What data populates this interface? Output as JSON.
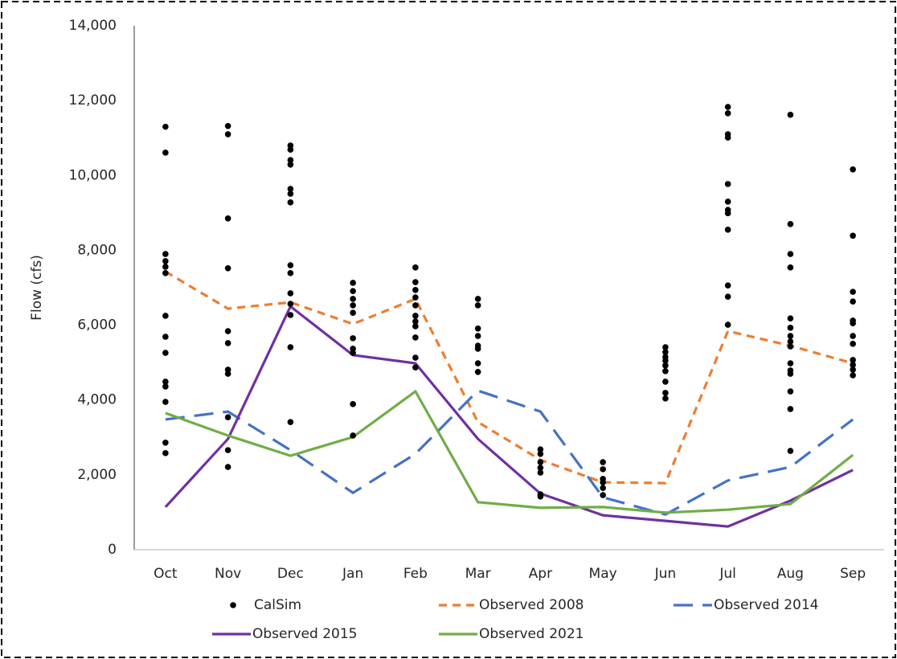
{
  "chart_data": {
    "type": "scatter-line",
    "y_label": "Flow (cfs)",
    "categories": [
      "Oct",
      "Nov",
      "Dec",
      "Jan",
      "Feb",
      "Mar",
      "Apr",
      "May",
      "Jun",
      "Jul",
      "Aug",
      "Sep"
    ],
    "ylim": [
      0,
      14000
    ],
    "yticks": [
      0,
      {
        "value": 2000,
        "label": "2,000"
      },
      {
        "value": 4000,
        "label": "4,000"
      },
      {
        "value": 6000,
        "label": "6,000"
      },
      {
        "value": 8000,
        "label": "8,000"
      },
      {
        "value": 10000,
        "label": "10,000"
      },
      {
        "value": 12000,
        "label": "12,000"
      },
      {
        "value": 14000,
        "label": "14,000"
      }
    ],
    "grid": false,
    "series": [
      {
        "name": "CalSim",
        "type": "scatter",
        "color": "#000000",
        "values": [
          [
            11300,
            10610,
            7900,
            7710,
            7560,
            7390,
            6250,
            5690,
            5260,
            4490,
            4360,
            3950,
            2860,
            2580
          ],
          [
            11320,
            11100,
            8850,
            7520,
            5840,
            5520,
            4810,
            4700,
            3540,
            2660,
            2210
          ],
          [
            10800,
            10690,
            10410,
            10290,
            9640,
            9510,
            9280,
            7600,
            7390,
            6850,
            6570,
            6270,
            5410,
            3410
          ],
          [
            7130,
            6910,
            6700,
            6530,
            6330,
            5650,
            5370,
            5260,
            3890,
            3050
          ],
          [
            7540,
            7150,
            6940,
            6740,
            6530,
            6250,
            6100,
            5970,
            5670,
            5130,
            4870
          ],
          [
            6700,
            6530,
            5910,
            5710,
            5450,
            5370,
            4980,
            4750
          ],
          [
            2680,
            2560,
            2340,
            2190,
            2060,
            1480,
            1420
          ],
          [
            2340,
            2150,
            1890,
            1800,
            1650,
            1460
          ],
          [
            5410,
            5280,
            5150,
            5050,
            4920,
            4770,
            4490,
            4190,
            4040
          ],
          [
            11830,
            11660,
            11100,
            11010,
            9770,
            9300,
            9080,
            8990,
            8550,
            7060,
            6760,
            6010
          ],
          [
            11620,
            8700,
            7900,
            7540,
            6180,
            5930,
            5710,
            5560,
            5430,
            4980,
            4790,
            4700,
            4230,
            3760,
            2640
          ],
          [
            10160,
            8390,
            6890,
            6630,
            6120,
            6050,
            5710,
            5500,
            5070,
            4940,
            4810,
            4660
          ]
        ]
      },
      {
        "name": "Observed 2008",
        "type": "line",
        "color": "#ed7d31",
        "dash": "short",
        "values": [
          7430,
          6440,
          6610,
          6030,
          6700,
          3410,
          2400,
          1800,
          1780,
          5840,
          5450,
          4980
        ]
      },
      {
        "name": "Observed 2014",
        "type": "line",
        "color": "#4472c4",
        "dash": "long",
        "values": [
          3480,
          3690,
          2660,
          1520,
          2560,
          4250,
          3690,
          1400,
          940,
          1850,
          2210,
          3480
        ]
      },
      {
        "name": "Observed 2015",
        "type": "line",
        "color": "#7030a0",
        "dash": "solid",
        "values": [
          1140,
          2960,
          6500,
          5200,
          4980,
          2960,
          1500,
          920,
          770,
          620,
          1310,
          2130
        ]
      },
      {
        "name": "Observed 2021",
        "type": "line",
        "color": "#70ad47",
        "dash": "solid",
        "values": [
          3650,
          3050,
          2510,
          3010,
          4230,
          1270,
          1120,
          1140,
          990,
          1070,
          1220,
          2530
        ]
      }
    ]
  }
}
